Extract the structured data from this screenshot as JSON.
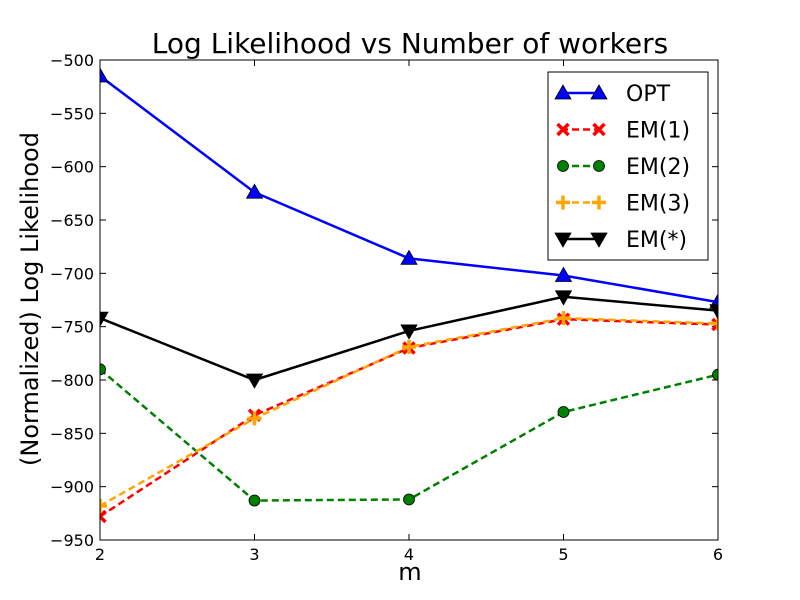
{
  "chart_data": {
    "type": "line",
    "title": "Log Likelihood vs Number of workers",
    "xlabel": "m",
    "ylabel": "(Normalized) Log Likelihood",
    "x": [
      2,
      3,
      4,
      5,
      6
    ],
    "xlim": [
      2,
      6
    ],
    "ylim": [
      -950,
      -500
    ],
    "xticks": [
      2,
      3,
      4,
      5,
      6
    ],
    "yticks": [
      -500,
      -550,
      -600,
      -650,
      -700,
      -750,
      -800,
      -850,
      -900,
      -950
    ],
    "xtick_labels": [
      "2",
      "3",
      "4",
      "5",
      "6"
    ],
    "ytick_labels": [
      "−500",
      "−550",
      "−600",
      "−650",
      "−700",
      "−750",
      "−800",
      "−850",
      "−900",
      "−950"
    ],
    "grid": false,
    "legend_position": "top-right",
    "series": [
      {
        "name": "OPT",
        "values": [
          -515,
          -624,
          -686,
          -702,
          -727
        ],
        "color": "#0000ff",
        "dash": "solid",
        "marker": "triangle-up"
      },
      {
        "name": "EM(1)",
        "values": [
          -928,
          -833,
          -770,
          -743,
          -748
        ],
        "color": "#ff0000",
        "dash": "dashed",
        "marker": "x"
      },
      {
        "name": "EM(2)",
        "values": [
          -790,
          -913,
          -912,
          -830,
          -795
        ],
        "color": "#008000",
        "dash": "dashed",
        "marker": "circle"
      },
      {
        "name": "EM(3)",
        "values": [
          -918,
          -836,
          -769,
          -742,
          -747
        ],
        "color": "#ffa500",
        "dash": "dashed",
        "marker": "plus"
      },
      {
        "name": "EM(*)",
        "values": [
          -742,
          -800,
          -754,
          -722,
          -735
        ],
        "color": "#000000",
        "dash": "solid",
        "marker": "triangle-down"
      }
    ]
  }
}
